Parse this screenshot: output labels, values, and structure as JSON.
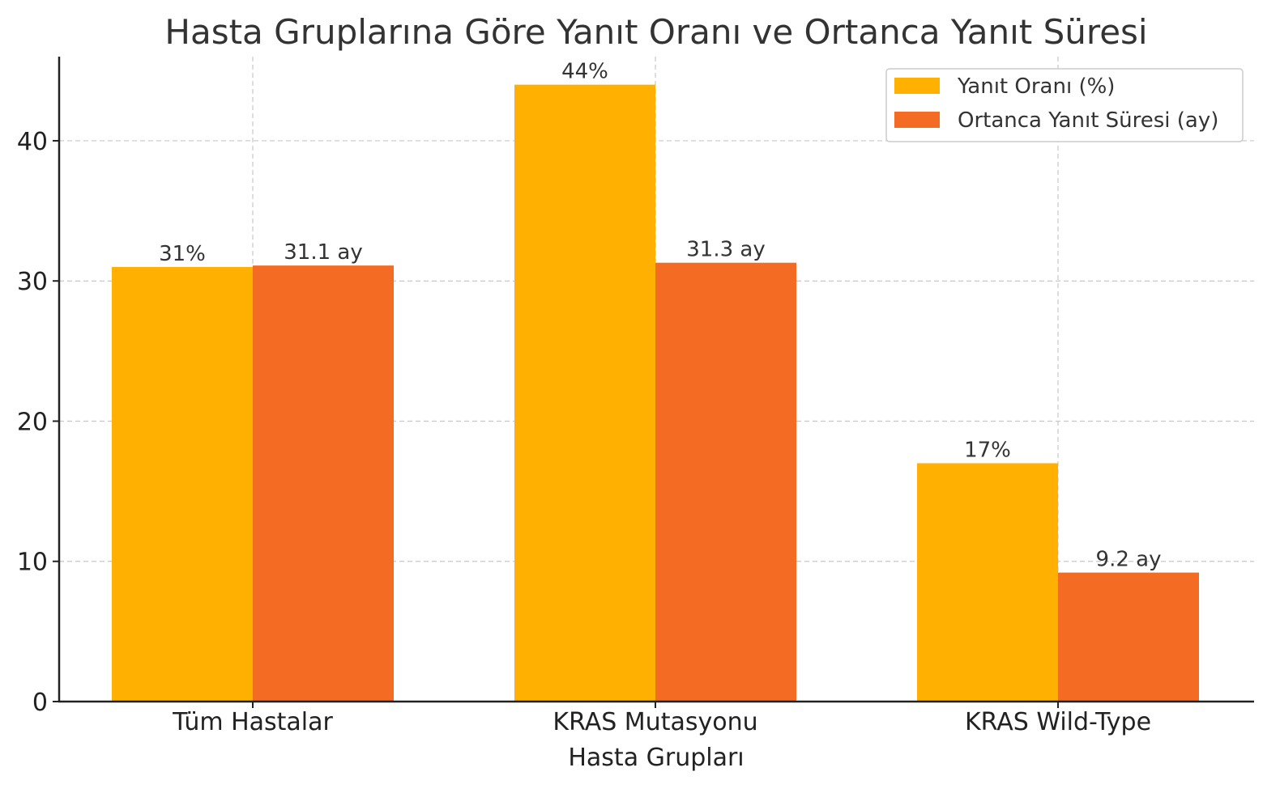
{
  "chart_data": {
    "type": "bar",
    "title": "Hasta Gruplarına Göre Yanıt Oranı ve Ortanca Yanıt Süresi",
    "xlabel": "Hasta Grupları",
    "ylabel": "",
    "ylim": [
      0,
      46
    ],
    "yticks": [
      0,
      10,
      20,
      30,
      40
    ],
    "categories": [
      "Tüm Hastalar",
      "KRAS Mutasyonu",
      "KRAS Wild-Type"
    ],
    "series": [
      {
        "name": "Yanıt Oranı (%)",
        "color": "#FFB000",
        "values": [
          31,
          44,
          17
        ],
        "labels": [
          "31%",
          "44%",
          "17%"
        ]
      },
      {
        "name": "Ortanca Yanıt Süresi (ay)",
        "color": "#F46B23",
        "values": [
          31.1,
          31.3,
          9.2
        ],
        "labels": [
          "31.1 ay",
          "31.3 ay",
          "9.2 ay"
        ]
      }
    ],
    "grid": true,
    "legend_position": "top-right"
  }
}
